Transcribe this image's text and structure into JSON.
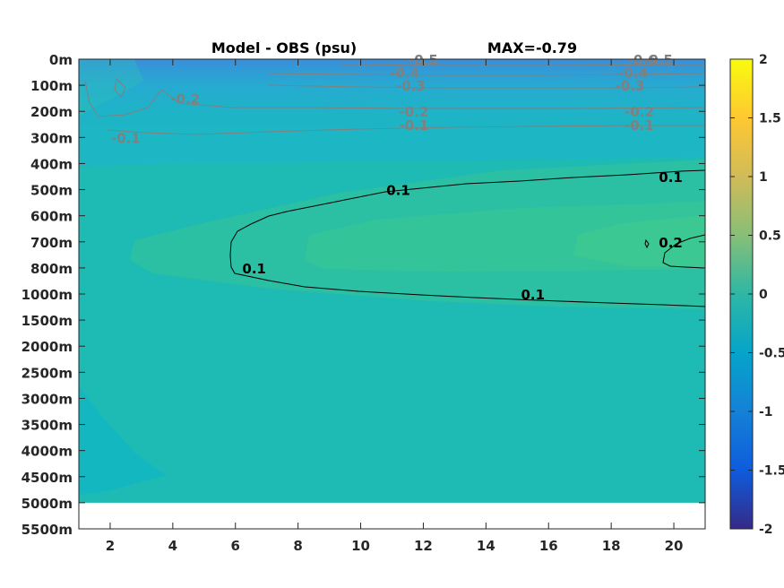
{
  "chart_data": {
    "type": "heatmap",
    "title": "Model - OBS (psu)",
    "max_label": "MAX=-0.79",
    "xlabel": "",
    "ylabel": "",
    "x_ticks": [
      2,
      4,
      6,
      8,
      10,
      12,
      14,
      16,
      18,
      20
    ],
    "xlim": [
      1,
      21
    ],
    "y_tick_labels": [
      "0m",
      "100m",
      "200m",
      "300m",
      "400m",
      "500m",
      "600m",
      "700m",
      "800m",
      "1000m",
      "1500m",
      "2000m",
      "2500m",
      "3000m",
      "3500m",
      "4000m",
      "4500m",
      "5000m",
      "5500m"
    ],
    "data_bottom_label": "5000m",
    "colorbar": {
      "ticks": [
        "2",
        "1.5",
        "1",
        "0.5",
        "0",
        "-0.5",
        "-1",
        "-1.5",
        "-2"
      ],
      "range": [
        -2,
        2
      ],
      "colormap": "parula"
    },
    "contour_labels": [
      {
        "text": "0.1",
        "level": 0.1,
        "x": 11.2,
        "depth": "500m"
      },
      {
        "text": "0.1",
        "level": 0.1,
        "x": 19.9,
        "depth": "450m"
      },
      {
        "text": "0.1",
        "level": 0.1,
        "x": 6.6,
        "depth": "800m"
      },
      {
        "text": "0.1",
        "level": 0.1,
        "x": 15.5,
        "depth": "1000m"
      },
      {
        "text": "0.2",
        "level": 0.2,
        "x": 19.9,
        "depth": "700m"
      },
      {
        "text": "-0.1",
        "level": -0.1,
        "x": 2.5,
        "depth": "300m"
      },
      {
        "text": "-0.1",
        "level": -0.1,
        "x": 11.7,
        "depth": "250m"
      },
      {
        "text": "-0.1",
        "level": -0.1,
        "x": 18.9,
        "depth": "250m"
      },
      {
        "text": "-0.2",
        "level": -0.2,
        "x": 4.4,
        "depth": "150m"
      },
      {
        "text": "-0.2",
        "level": -0.2,
        "x": 11.7,
        "depth": "200m"
      },
      {
        "text": "-0.2",
        "level": -0.2,
        "x": 18.9,
        "depth": "200m"
      },
      {
        "text": "-0.3",
        "level": -0.3,
        "x": 11.6,
        "depth": "100m"
      },
      {
        "text": "-0.3",
        "level": -0.3,
        "x": 18.6,
        "depth": "100m"
      },
      {
        "text": "-0.4",
        "level": -0.4,
        "x": 11.4,
        "depth": "50m"
      },
      {
        "text": "-0.4",
        "level": -0.4,
        "x": 18.7,
        "depth": "50m"
      },
      {
        "text": "-0.5",
        "level": -0.5,
        "x": 12.0,
        "depth": "0m"
      },
      {
        "text": "-0.5",
        "level": -0.5,
        "x": 19.5,
        "depth": "0m"
      },
      {
        "text": "-0.6",
        "level": -0.6,
        "x": 19.0,
        "depth": "0m"
      }
    ],
    "regions": {
      "background_value": 0.02,
      "surface_value": -0.3,
      "core_value": 0.15,
      "deep_left_value": -0.05
    }
  },
  "colors": {
    "background_field": "#1ebbb4",
    "deep_left_field": "#12b7c0",
    "upper_mid_field": "#1cb6c4",
    "surface_field": "#3c8cdc",
    "core_outer": "#2bbfa4",
    "core_inner": "#34c49a",
    "positive_contour": "#000000",
    "negative_contour": "#808080"
  }
}
